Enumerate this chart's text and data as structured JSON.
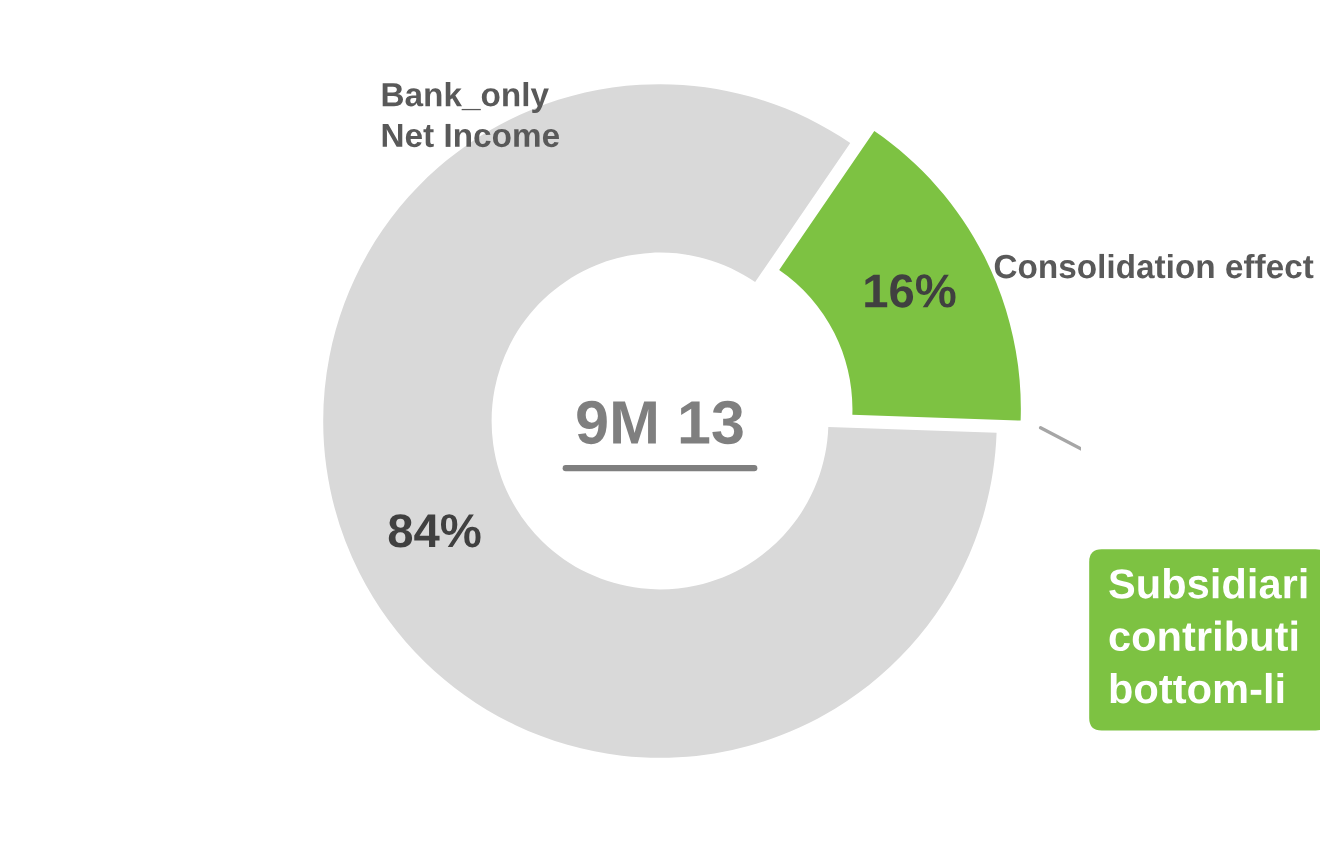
{
  "chart_data": {
    "type": "donut",
    "categories": [
      "Bank_only\nNet Income",
      "Consolidation effect"
    ],
    "values": [
      84,
      16
    ],
    "colors": [
      "#d9d9d9",
      "#7dc242"
    ],
    "value_labels": [
      "84%",
      "16%"
    ],
    "annotations": [
      "9M 13",
      "Subsidiari\ncontributi\nbottom-li"
    ]
  }
}
